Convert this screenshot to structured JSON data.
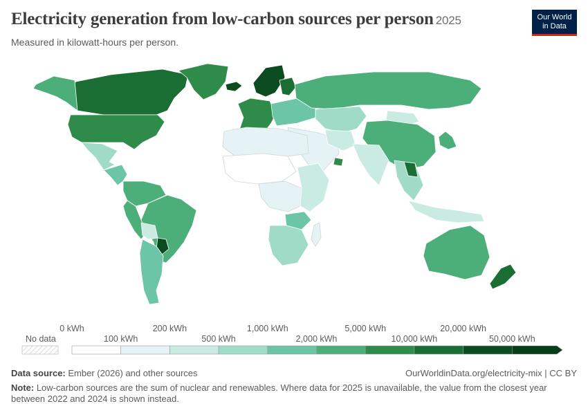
{
  "header": {
    "title": "Electricity generation from low-carbon sources per person",
    "year": "2025",
    "subtitle": "Measured in kilowatt-hours per person.",
    "logo_line1": "Our World",
    "logo_line2": "in Data"
  },
  "legend": {
    "no_data_label": "No data",
    "top_labels": [
      "0 kWh",
      "200 kWh",
      "1,000 kWh",
      "5,000 kWh",
      "20,000 kWh"
    ],
    "bottom_labels": [
      "100 kWh",
      "500 kWh",
      "2,000 kWh",
      "10,000 kWh",
      "50,000 kWh"
    ],
    "colors": [
      "#ffffff",
      "#e5f3f6",
      "#c9ebe1",
      "#a0dbc8",
      "#6cc5a6",
      "#4caf79",
      "#2e8b4a",
      "#1a6d33",
      "#0b4b20"
    ]
  },
  "map": {
    "ocean_color": "#ffffff",
    "regions": [
      {
        "name": "Canada",
        "level": 7
      },
      {
        "name": "Alaska",
        "level": 5
      },
      {
        "name": "Greenland",
        "level": 6
      },
      {
        "name": "United States",
        "level": 6
      },
      {
        "name": "Mexico",
        "level": 3
      },
      {
        "name": "Central America",
        "level": 4
      },
      {
        "name": "Colombia / Venezuela",
        "level": 5
      },
      {
        "name": "Peru / Ecuador",
        "level": 5
      },
      {
        "name": "Brazil",
        "level": 5
      },
      {
        "name": "Bolivia",
        "level": 2
      },
      {
        "name": "Paraguay",
        "level": 8
      },
      {
        "name": "Chile / Argentina",
        "level": 4
      },
      {
        "name": "Iceland",
        "level": 8
      },
      {
        "name": "Norway / Sweden",
        "level": 8
      },
      {
        "name": "Finland",
        "level": 7
      },
      {
        "name": "Western Europe",
        "level": 6
      },
      {
        "name": "Eastern Europe",
        "level": 4
      },
      {
        "name": "Russia",
        "level": 5
      },
      {
        "name": "Kazakhstan / Central Asia",
        "level": 3
      },
      {
        "name": "Mongolia",
        "level": 2
      },
      {
        "name": "China",
        "level": 5
      },
      {
        "name": "Korea / Japan",
        "level": 5
      },
      {
        "name": "Middle East",
        "level": 1
      },
      {
        "name": "UAE",
        "level": 6
      },
      {
        "name": "Iran",
        "level": 2
      },
      {
        "name": "India",
        "level": 2
      },
      {
        "name": "Southeast Asia",
        "level": 3
      },
      {
        "name": "Laos",
        "level": 7
      },
      {
        "name": "Indonesia",
        "level": 2
      },
      {
        "name": "North Africa",
        "level": 1
      },
      {
        "name": "Sahel",
        "level": 0
      },
      {
        "name": "Central Africa",
        "level": 1
      },
      {
        "name": "East Africa",
        "level": 2
      },
      {
        "name": "Zambia",
        "level": 4
      },
      {
        "name": "Southern Africa",
        "level": 3
      },
      {
        "name": "Madagascar",
        "level": 1
      },
      {
        "name": "Australia",
        "level": 5
      },
      {
        "name": "New Zealand",
        "level": 7
      }
    ]
  },
  "footer": {
    "source_label": "Data source:",
    "source_text": " Ember (2026) and other sources",
    "url": "OurWorldinData.org/electricity-mix | CC BY",
    "note_label": "Note:",
    "note_text": " Low-carbon sources are the sum of nuclear and renewables. Where data for 2025 is unavailable, the value from the closest year between 2022 and 2024 is shown instead."
  }
}
